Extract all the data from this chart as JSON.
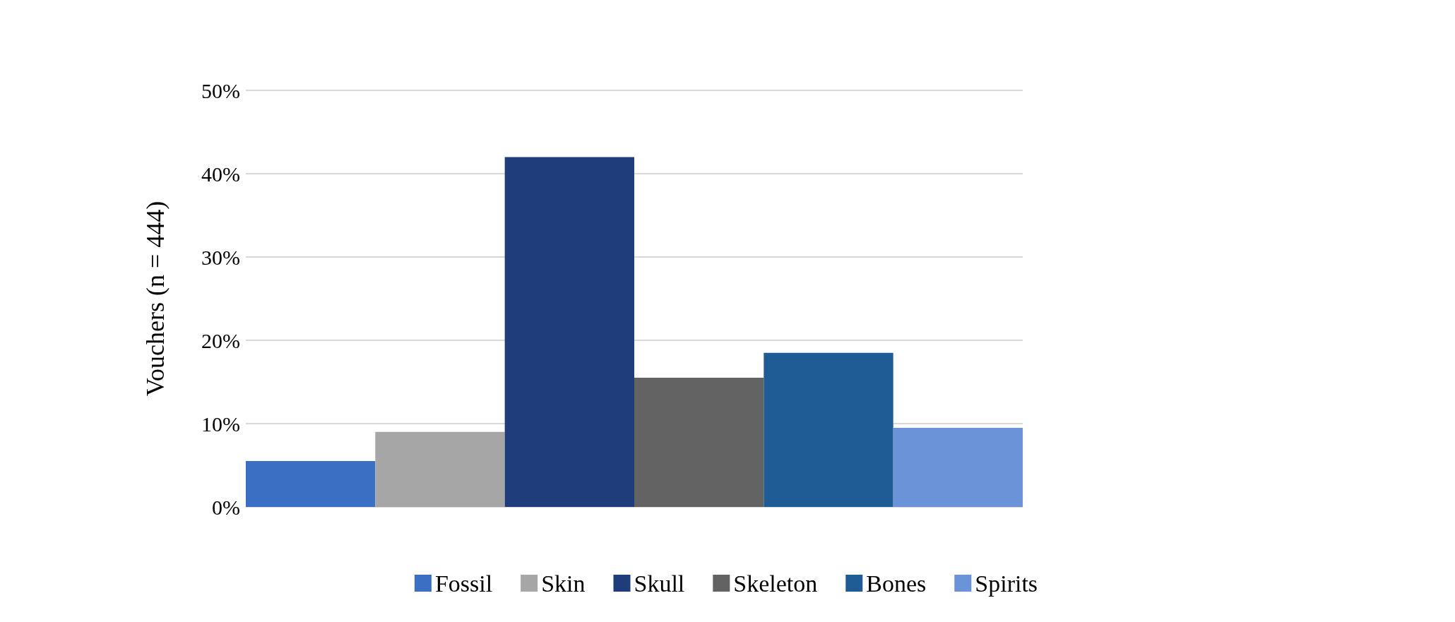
{
  "chart_data": {
    "type": "bar",
    "ylabel": "Vouchers (n = 444)",
    "categories": [
      null
    ],
    "series": [
      {
        "name": "Fossil",
        "color": "#3a6fc4",
        "values": [
          5.5
        ]
      },
      {
        "name": "Skin",
        "color": "#a6a6a6",
        "values": [
          9
        ]
      },
      {
        "name": "Skull",
        "color": "#1f3d7a",
        "values": [
          42
        ]
      },
      {
        "name": "Skeleton",
        "color": "#636363",
        "values": [
          15.5
        ]
      },
      {
        "name": "Bones",
        "color": "#1f5c96",
        "values": [
          18.5
        ]
      },
      {
        "name": "Spirits",
        "color": "#6a93d8",
        "values": [
          9.5
        ]
      }
    ],
    "ylim": [
      0,
      50
    ],
    "yticks": [
      {
        "value": 0,
        "label": "0%"
      },
      {
        "value": 10,
        "label": "10%"
      },
      {
        "value": 20,
        "label": "20%"
      },
      {
        "value": 30,
        "label": "30%"
      },
      {
        "value": 40,
        "label": "40%"
      },
      {
        "value": 50,
        "label": "50%"
      }
    ],
    "grid": "y",
    "legend": "bottom"
  }
}
